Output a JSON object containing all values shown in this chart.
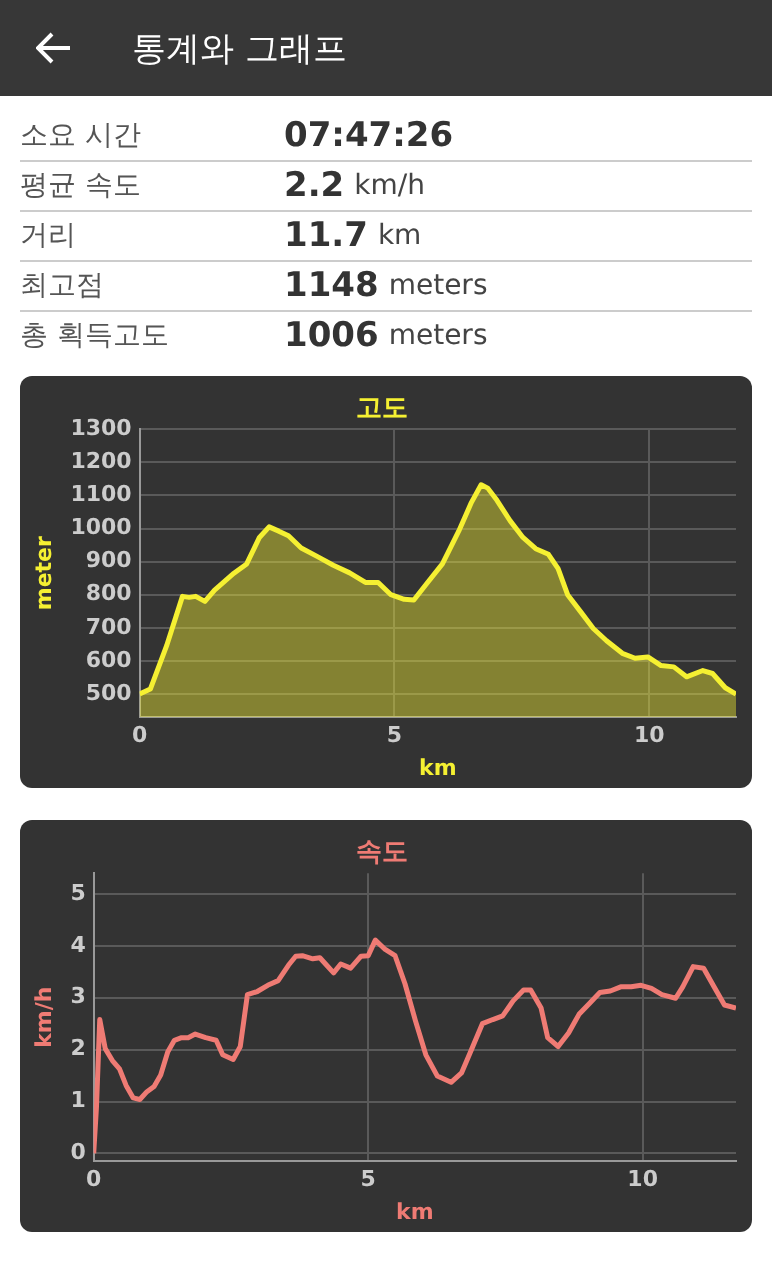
{
  "chart_data": [
    {
      "type": "other",
      "title": "통계와 그래프",
      "annotations": [
        "소요 시간",
        "07:47:26",
        "평균 속도",
        "2.2 km/h",
        "거리",
        "11.7 km",
        "최고점",
        "1148 meters",
        "총 획득고도",
        "1006 meters"
      ]
    },
    {
      "type": "area",
      "title": "고도",
      "xlabel": "km",
      "ylabel": "meter",
      "xlim": [
        0,
        11.7
      ],
      "xticks": [
        0,
        5,
        10
      ],
      "ylim": [
        430,
        1300
      ],
      "yticks": [
        500,
        600,
        700,
        800,
        900,
        1000,
        1100,
        1200,
        1300
      ],
      "grid": true,
      "marker": "none",
      "series": [
        {
          "color": "#f5f032",
          "x": [
            0,
            0.21,
            0.53,
            0.84,
            0.97,
            1.1,
            1.28,
            1.47,
            1.85,
            2.1,
            2.35,
            2.54,
            2.73,
            2.92,
            3.17,
            3.49,
            3.8,
            4.12,
            4.43,
            4.68,
            4.93,
            5.19,
            5.38,
            5.63,
            5.94,
            6.26,
            6.51,
            6.7,
            6.83,
            7.01,
            7.27,
            7.52,
            7.77,
            8.02,
            8.21,
            8.4,
            8.65,
            8.9,
            9.16,
            9.47,
            9.72,
            9.97,
            10.23,
            10.48,
            10.73,
            11.05,
            11.24,
            11.49,
            11.7
          ],
          "values": [
            500,
            515,
            646,
            795,
            792,
            795,
            780,
            814,
            865,
            893,
            973,
            1005,
            992,
            978,
            941,
            915,
            889,
            866,
            837,
            837,
            800,
            786,
            784,
            833,
            893,
            992,
            1079,
            1132,
            1122,
            1085,
            1023,
            973,
            939,
            922,
            879,
            799,
            749,
            698,
            661,
            623,
            608,
            612,
            586,
            582,
            552,
            571,
            562,
            519,
            500
          ]
        }
      ]
    },
    {
      "type": "line",
      "title": "속도",
      "xlabel": "km",
      "ylabel": "km/h",
      "xlim": [
        0,
        11.7
      ],
      "xticks": [
        0,
        5,
        10
      ],
      "ylim": [
        -0.15,
        5.4
      ],
      "yticks": [
        0,
        1,
        2,
        3,
        4,
        5
      ],
      "grid": true,
      "marker": "none",
      "series": [
        {
          "color": "#ef7b74",
          "x": [
            0,
            0.05,
            0.11,
            0.21,
            0.34,
            0.47,
            0.59,
            0.72,
            0.84,
            0.97,
            1.1,
            1.22,
            1.35,
            1.47,
            1.6,
            1.72,
            1.85,
            2.04,
            2.23,
            2.35,
            2.54,
            2.67,
            2.8,
            2.98,
            3.17,
            3.36,
            3.55,
            3.68,
            3.8,
            3.99,
            4.12,
            4.24,
            4.37,
            4.5,
            4.68,
            4.87,
            5.0,
            5.13,
            5.31,
            5.49,
            5.67,
            5.86,
            6.05,
            6.26,
            6.51,
            6.7,
            6.89,
            7.08,
            7.27,
            7.45,
            7.64,
            7.83,
            7.96,
            8.15,
            8.27,
            8.46,
            8.65,
            8.84,
            9.03,
            9.22,
            9.41,
            9.6,
            9.79,
            9.97,
            10.16,
            10.35,
            10.6,
            10.73,
            10.92,
            11.11,
            11.3,
            11.49,
            11.7
          ],
          "values": [
            0,
            0.89,
            2.58,
            2.02,
            1.79,
            1.63,
            1.31,
            1.07,
            1.04,
            1.19,
            1.29,
            1.51,
            1.96,
            2.18,
            2.23,
            2.23,
            2.3,
            2.23,
            2.18,
            1.9,
            1.81,
            2.06,
            3.06,
            3.12,
            3.24,
            3.33,
            3.63,
            3.8,
            3.81,
            3.75,
            3.77,
            3.63,
            3.48,
            3.65,
            3.57,
            3.8,
            3.81,
            4.11,
            3.93,
            3.81,
            3.27,
            2.56,
            1.9,
            1.49,
            1.37,
            1.55,
            2.02,
            2.5,
            2.58,
            2.65,
            2.94,
            3.15,
            3.15,
            2.8,
            2.23,
            2.06,
            2.32,
            2.68,
            2.89,
            3.1,
            3.13,
            3.21,
            3.21,
            3.24,
            3.18,
            3.06,
            2.99,
            3.21,
            3.6,
            3.57,
            3.21,
            2.86,
            2.8
          ]
        }
      ]
    }
  ]
}
